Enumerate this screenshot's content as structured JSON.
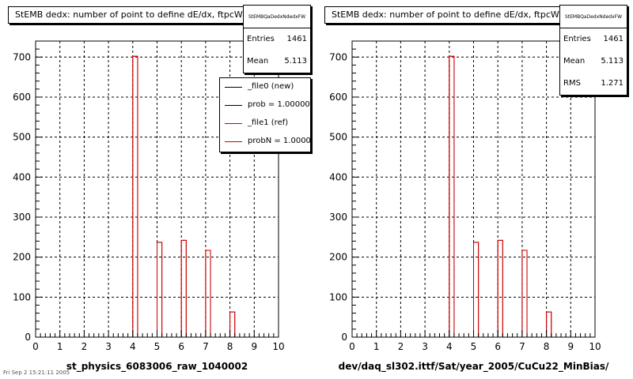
{
  "chart_data": [
    {
      "type": "bar",
      "title": "StEMB dedx: number of point to define dE/dx, ftpcW",
      "xlabel": "st_physics_6083006_raw_1040002",
      "ylabel": "",
      "xlim": [
        0,
        10
      ],
      "ylim": [
        0,
        740
      ],
      "xticks": [
        0,
        1,
        2,
        3,
        4,
        5,
        6,
        7,
        8,
        9,
        10
      ],
      "yticks": [
        0,
        100,
        200,
        300,
        400,
        500,
        600,
        700
      ],
      "grid": true,
      "bin_width": 0.2,
      "bins": [
        {
          "x": 4,
          "y": 702
        },
        {
          "x": 5,
          "y": 237
        },
        {
          "x": 6,
          "y": 242
        },
        {
          "x": 7,
          "y": 217
        },
        {
          "x": 8,
          "y": 63
        }
      ],
      "stats": {
        "name": "StEMBQaDedxNdedxFW",
        "rows": [
          {
            "label": "Entries",
            "value": "1461"
          },
          {
            "label": "Mean",
            "value": "5.113"
          }
        ]
      },
      "legend": {
        "placement": "top-right",
        "entries": [
          {
            "label": "_file0 (new)",
            "color": "#000000"
          },
          {
            "label": "prob = 1.000000",
            "color": "#000000"
          },
          {
            "label": "_file1 (ref)",
            "color": "#cc0000"
          },
          {
            "label": "probN = 1.000000",
            "color": "#cc0000"
          }
        ]
      },
      "colors": {
        "hist": "#cc0000",
        "axis": "#000000"
      }
    },
    {
      "type": "bar",
      "title": "StEMB dedx: number of point to define dE/dx, ftpcW",
      "xlabel": "dev/daq_sl302.ittf/Sat/year_2005/CuCu22_MinBias/",
      "ylabel": "",
      "xlim": [
        0,
        10
      ],
      "ylim": [
        0,
        740
      ],
      "xticks": [
        0,
        1,
        2,
        3,
        4,
        5,
        6,
        7,
        8,
        9,
        10
      ],
      "yticks": [
        0,
        100,
        200,
        300,
        400,
        500,
        600,
        700
      ],
      "grid": true,
      "bin_width": 0.2,
      "bins": [
        {
          "x": 4,
          "y": 702
        },
        {
          "x": 5,
          "y": 237
        },
        {
          "x": 6,
          "y": 242
        },
        {
          "x": 7,
          "y": 217
        },
        {
          "x": 8,
          "y": 63
        }
      ],
      "stats": {
        "name": "StEMBQaDedxNdedxFW",
        "rows": [
          {
            "label": "Entries",
            "value": "1461"
          },
          {
            "label": "Mean",
            "value": "5.113"
          },
          {
            "label": "RMS",
            "value": "1.271"
          }
        ]
      },
      "colors": {
        "hist": "#cc0000",
        "axis": "#000000"
      }
    }
  ],
  "footer": "Fri Sep 2 15:21:11 2005"
}
